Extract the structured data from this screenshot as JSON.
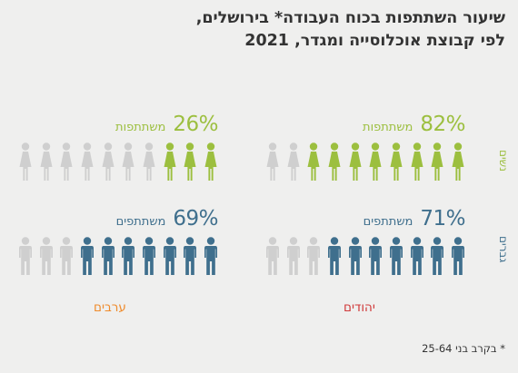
{
  "title": {
    "line1": "שיעור השתתפות בכוח העבודה* בירושלים,",
    "line2": "לפי קבוצת אוכלוסייה ומגדר, 2021"
  },
  "colors": {
    "female": "#9cbf3f",
    "male": "#3f6f8d",
    "inactive": "#cfcfcf",
    "jews_label": "#d03a3a",
    "arabs_label": "#ef8b2c"
  },
  "genders": {
    "women": "נשים",
    "men": "גברים"
  },
  "groups": {
    "jews": "יהודים",
    "arabs": "ערבים"
  },
  "footnote": "* בקרב בני 25-64",
  "chart_data": {
    "type": "pictogram",
    "unit": "%",
    "icons_per_panel": 10,
    "panels": [
      {
        "group": "יהודים",
        "gender": "נשים",
        "value": 82,
        "label": "משתתפות"
      },
      {
        "group": "ערבים",
        "gender": "נשים",
        "value": 26,
        "label": "משתתפות"
      },
      {
        "group": "יהודים",
        "gender": "גברים",
        "value": 71,
        "label": "משתתפים"
      },
      {
        "group": "ערבים",
        "gender": "גברים",
        "value": 69,
        "label": "משתתפים"
      }
    ]
  }
}
